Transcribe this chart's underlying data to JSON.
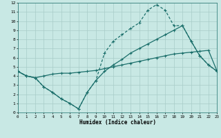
{
  "bg_color": "#c8e8e4",
  "grid_color": "#a8ccc8",
  "line_color": "#1a6e6a",
  "xlim": [
    0,
    23
  ],
  "ylim": [
    0,
    12
  ],
  "xticks": [
    0,
    1,
    2,
    3,
    4,
    5,
    6,
    7,
    8,
    9,
    10,
    11,
    12,
    13,
    14,
    15,
    16,
    17,
    18,
    19,
    20,
    21,
    22,
    23
  ],
  "yticks": [
    0,
    1,
    2,
    3,
    4,
    5,
    6,
    7,
    8,
    9,
    10,
    11,
    12
  ],
  "xlabel": "Humidex (Indice chaleur)",
  "line1_x": [
    0,
    1,
    2,
    3,
    4,
    5,
    6,
    7,
    8,
    9,
    10,
    11,
    12,
    13,
    14,
    15,
    16,
    17,
    18,
    19,
    20,
    21,
    22,
    23
  ],
  "line1_y": [
    4.5,
    4.0,
    3.8,
    4.0,
    4.2,
    4.3,
    4.3,
    4.4,
    4.5,
    4.6,
    4.8,
    5.0,
    5.2,
    5.4,
    5.6,
    5.8,
    6.0,
    6.2,
    6.4,
    6.5,
    6.6,
    6.7,
    6.8,
    4.5
  ],
  "line2_x": [
    0,
    1,
    2,
    3,
    4,
    5,
    6,
    7,
    8,
    9,
    10,
    11,
    12,
    13,
    14,
    15,
    16,
    17,
    18,
    19,
    20,
    21,
    22,
    23
  ],
  "line2_y": [
    4.5,
    4.0,
    3.8,
    2.8,
    2.2,
    1.5,
    1.0,
    0.4,
    2.2,
    3.5,
    4.5,
    5.2,
    5.8,
    6.5,
    7.0,
    7.5,
    8.0,
    8.5,
    9.0,
    9.5,
    7.8,
    6.2,
    5.2,
    4.5
  ],
  "line3_x": [
    0,
    1,
    2,
    3,
    4,
    5,
    6,
    7,
    8,
    9,
    10,
    11,
    12,
    13,
    14,
    15,
    16,
    17,
    18,
    19,
    20,
    21,
    22,
    23
  ],
  "line3_y": [
    4.5,
    4.0,
    3.8,
    2.8,
    2.2,
    1.5,
    1.0,
    0.4,
    2.2,
    3.5,
    6.5,
    7.8,
    8.5,
    9.2,
    9.8,
    11.2,
    11.8,
    11.2,
    9.5,
    9.5,
    7.8,
    6.2,
    5.2,
    4.5
  ]
}
